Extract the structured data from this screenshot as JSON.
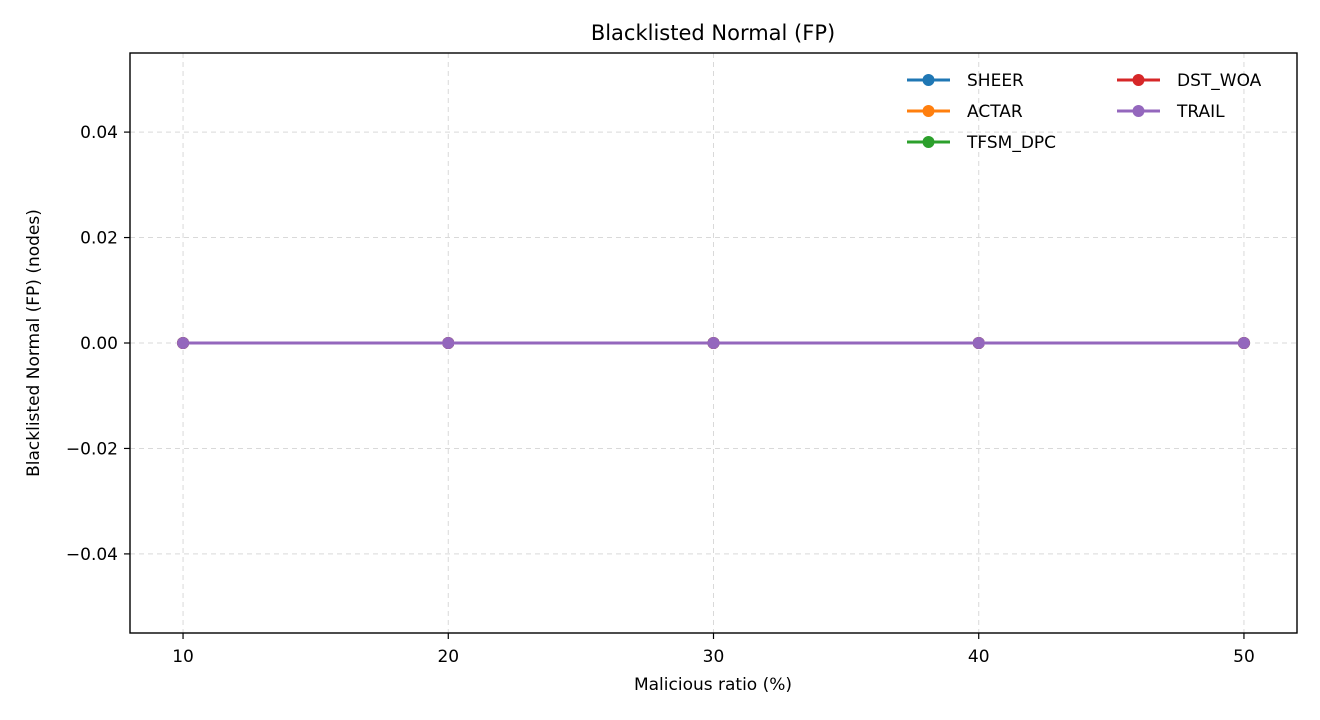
{
  "chart_data": {
    "type": "line",
    "title": "Blacklisted Normal (FP)",
    "xlabel": "Malicious ratio (%)",
    "ylabel": "Blacklisted Normal (FP) (nodes)",
    "x": [
      10,
      20,
      30,
      40,
      50
    ],
    "xticks": [
      10,
      20,
      30,
      40,
      50
    ],
    "xtick_labels": [
      "10",
      "20",
      "30",
      "40",
      "50"
    ],
    "yticks": [
      -0.04,
      -0.02,
      0.0,
      0.02,
      0.04
    ],
    "ytick_labels": [
      "−0.04",
      "−0.02",
      "0.00",
      "0.02",
      "0.04"
    ],
    "xlim": [
      8,
      52
    ],
    "ylim": [
      -0.055,
      0.055
    ],
    "grid": true,
    "legend_position": "top-right",
    "legend_columns": 2,
    "series": [
      {
        "name": "SHEER",
        "color": "#1f77b4",
        "values": [
          0,
          0,
          0,
          0,
          0
        ]
      },
      {
        "name": "ACTAR",
        "color": "#ff7f0e",
        "values": [
          0,
          0,
          0,
          0,
          0
        ]
      },
      {
        "name": "TFSM_DPC",
        "color": "#2ca02c",
        "values": [
          0,
          0,
          0,
          0,
          0
        ]
      },
      {
        "name": "DST_WOA",
        "color": "#d62728",
        "values": [
          0,
          0,
          0,
          0,
          0
        ]
      },
      {
        "name": "TRAIL",
        "color": "#9467bd",
        "values": [
          0,
          0,
          0,
          0,
          0
        ]
      }
    ]
  }
}
